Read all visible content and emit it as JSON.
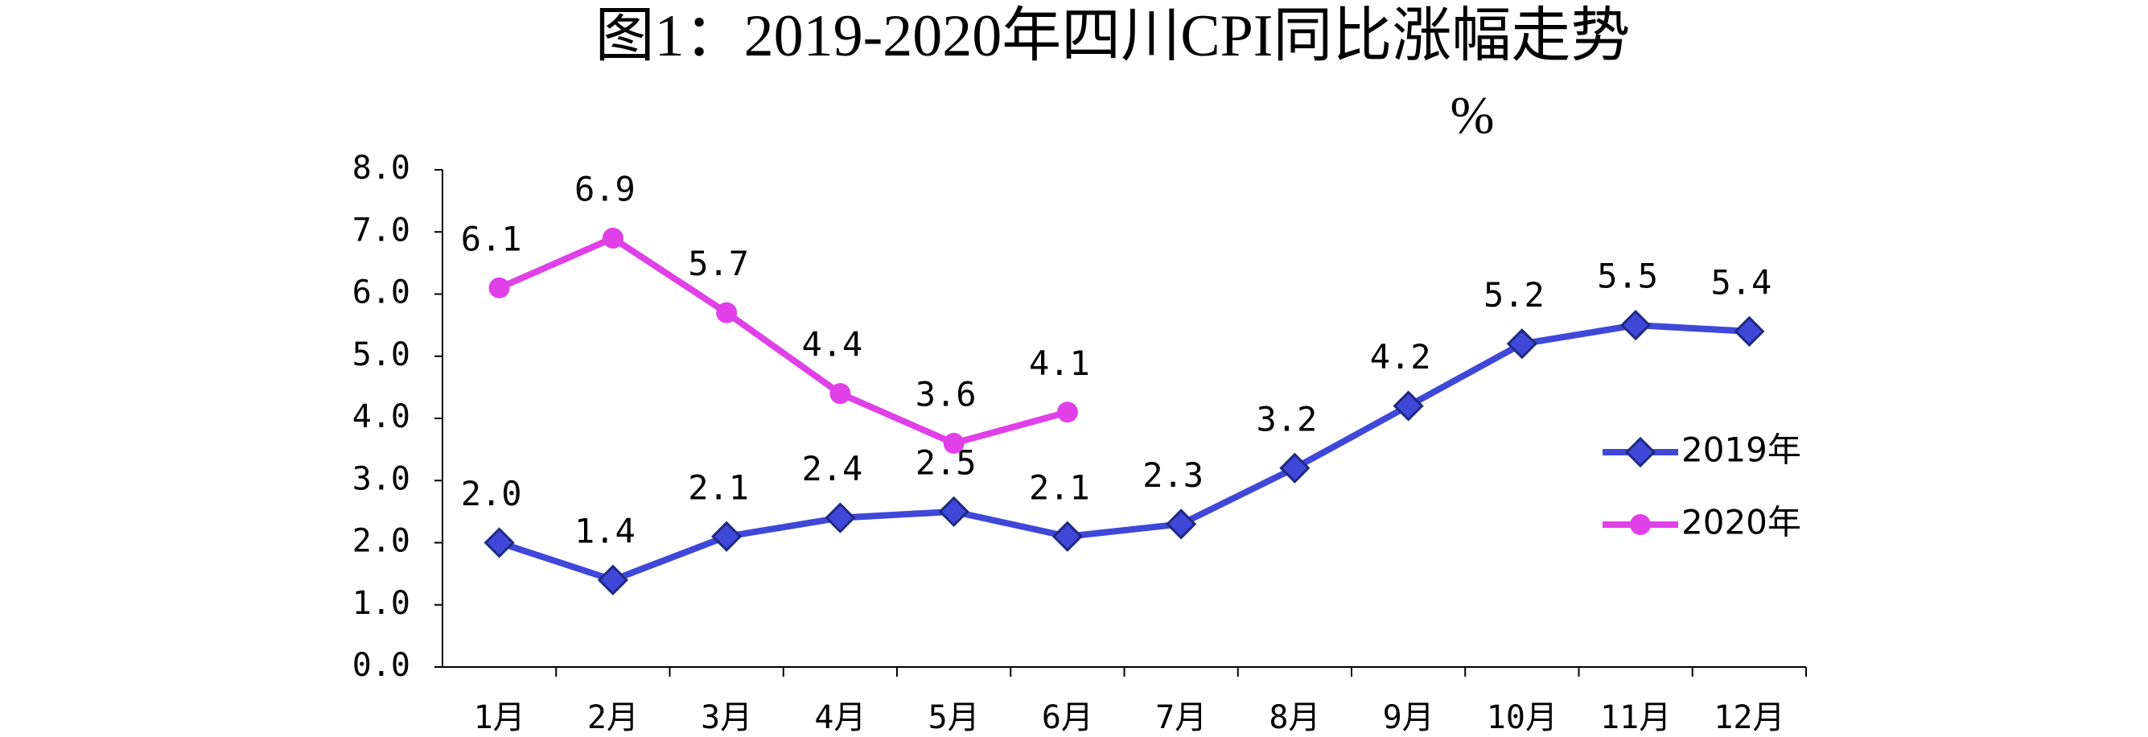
{
  "chart_data": {
    "type": "line",
    "title": "图1：2019-2020年四川CPI同比涨幅走势",
    "unit": "%",
    "categories": [
      "1月",
      "2月",
      "3月",
      "4月",
      "5月",
      "6月",
      "7月",
      "8月",
      "9月",
      "10月",
      "11月",
      "12月"
    ],
    "series": [
      {
        "name": "2019年",
        "color": "#3f48d8",
        "marker": "diamond",
        "values": [
          2.0,
          1.4,
          2.1,
          2.4,
          2.5,
          2.1,
          2.3,
          3.2,
          4.2,
          5.2,
          5.5,
          5.4
        ],
        "value_labels": [
          "2.0",
          "1.4",
          "2.1",
          "2.4",
          "2.5",
          "2.1",
          "2.3",
          "3.2",
          "4.2",
          "5.2",
          "5.5",
          "5.4"
        ]
      },
      {
        "name": "2020年",
        "color": "#e040e8",
        "marker": "circle",
        "values": [
          6.1,
          6.9,
          5.7,
          4.4,
          3.6,
          4.1,
          null,
          null,
          null,
          null,
          null,
          null
        ],
        "value_labels": [
          "6.1",
          "6.9",
          "5.7",
          "4.4",
          "3.6",
          "4.1",
          null,
          null,
          null,
          null,
          null,
          null
        ]
      }
    ],
    "ylim": [
      0,
      8
    ],
    "yticks": [
      {
        "value": 0,
        "label": "0.0"
      },
      {
        "value": 1,
        "label": "1.0"
      },
      {
        "value": 2,
        "label": "2.0"
      },
      {
        "value": 3,
        "label": "3.0"
      },
      {
        "value": 4,
        "label": "4.0"
      },
      {
        "value": 5,
        "label": "5.0"
      },
      {
        "value": 6,
        "label": "6.0"
      },
      {
        "value": 7,
        "label": "7.0"
      },
      {
        "value": 8,
        "label": "8.0"
      }
    ],
    "grid": false,
    "legend": "right"
  }
}
